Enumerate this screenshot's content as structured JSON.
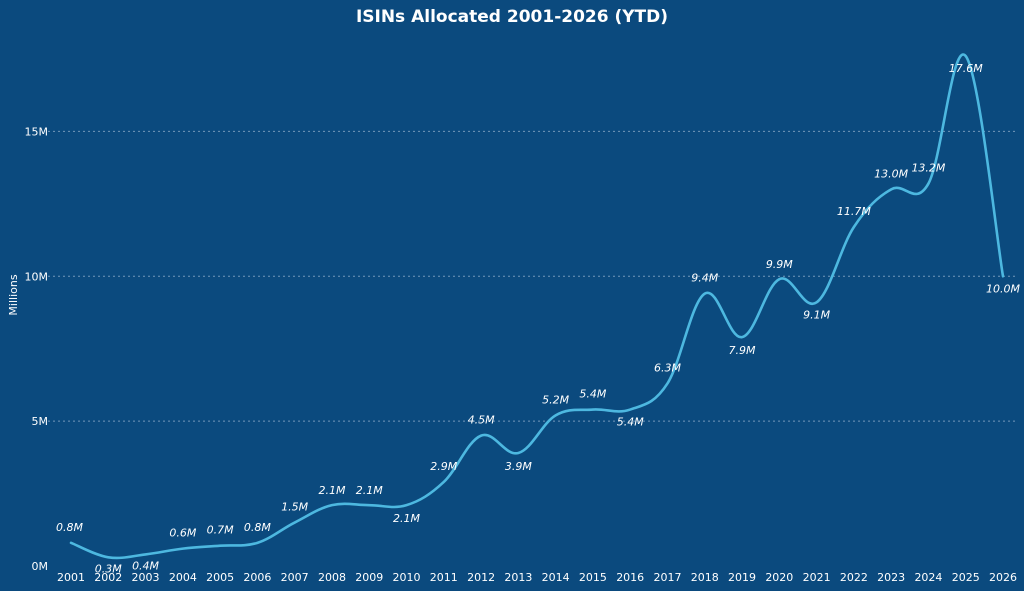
{
  "chart_data": {
    "type": "line",
    "title": "ISINs Allocated 2001-2026  (YTD)",
    "ylabel": "Millions",
    "xlabel": "",
    "ylim": [
      0,
      18.5
    ],
    "yticks": [
      {
        "value": 0,
        "label": "0M"
      },
      {
        "value": 5,
        "label": "5M"
      },
      {
        "value": 10,
        "label": "10M"
      },
      {
        "value": 15,
        "label": "15M"
      }
    ],
    "grid": true,
    "categories": [
      "2001",
      "2002",
      "2003",
      "2004",
      "2005",
      "2006",
      "2007",
      "2008",
      "2009",
      "2010",
      "2011",
      "2012",
      "2013",
      "2014",
      "2015",
      "2016",
      "2017",
      "2018",
      "2019",
      "2020",
      "2021",
      "2022",
      "2023",
      "2024",
      "2025",
      "2026"
    ],
    "series": [
      {
        "values": [
          0.8,
          0.3,
          0.4,
          0.6,
          0.7,
          0.8,
          1.5,
          2.1,
          2.1,
          2.1,
          2.9,
          4.5,
          3.9,
          5.2,
          5.4,
          5.4,
          6.3,
          9.4,
          7.9,
          9.9,
          9.1,
          11.7,
          13.0,
          13.2,
          17.6,
          10.0
        ],
        "labels": [
          "0.8M",
          "0.3M",
          "0.4M",
          "0.6M",
          "0.7M",
          "0.8M",
          "1.5M",
          "2.1M",
          "2.1M",
          "2.1M",
          "2.9M",
          "4.5M",
          "3.9M",
          "5.2M",
          "5.4M",
          "5.4M",
          "6.3M",
          "9.4M",
          "7.9M",
          "9.9M",
          "9.1M",
          "11.7M",
          "13.0M",
          "13.2M",
          "17.6M",
          "10.0M"
        ],
        "color": "#4db8e0"
      }
    ]
  },
  "colors": {
    "background": "#0b4a7e",
    "line": "#4db8e0",
    "text": "#ffffff"
  }
}
